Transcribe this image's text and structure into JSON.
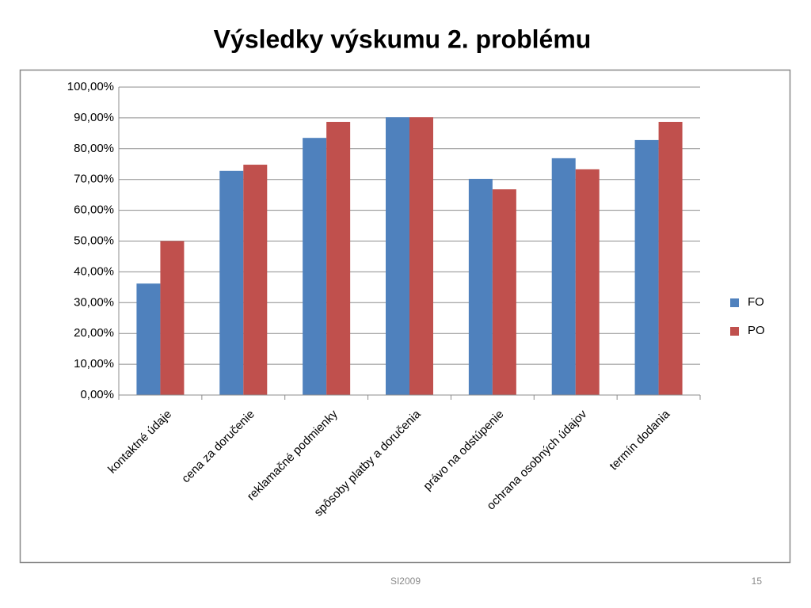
{
  "chart_data": {
    "type": "bar",
    "title": "Výsledky výskumu 2. problému",
    "categories": [
      "kontaktné údaje",
      "cena za doručenie",
      "reklamačné podmienky",
      "spôsoby platby a doručenia",
      "právo na odstúpenie",
      "ochrana osobných údajov",
      "termín dodania"
    ],
    "series": [
      {
        "name": "FO",
        "color": "#4f81bd",
        "values": [
          36.2,
          72.8,
          83.5,
          90.2,
          70.2,
          76.9,
          82.8
        ]
      },
      {
        "name": "PO",
        "color": "#c0504d",
        "values": [
          50,
          74.8,
          88.7,
          90.2,
          66.8,
          73.3,
          88.7
        ]
      }
    ],
    "ylim": [
      0,
      100
    ],
    "yticks": [
      {
        "value": 0,
        "label": "0,00%"
      },
      {
        "value": 10,
        "label": "10,00%"
      },
      {
        "value": 20,
        "label": "20,00%"
      },
      {
        "value": 30,
        "label": "30,00%"
      },
      {
        "value": 40,
        "label": "40,00%"
      },
      {
        "value": 50,
        "label": "50,00%"
      },
      {
        "value": 60,
        "label": "60,00%"
      },
      {
        "value": 70,
        "label": "70,00%"
      },
      {
        "value": 80,
        "label": "80,00%"
      },
      {
        "value": 90,
        "label": "90,00%"
      },
      {
        "value": 100,
        "label": "100,00%"
      }
    ],
    "grid": true,
    "legend": "right"
  },
  "footer": {
    "left": "SI2009",
    "page": "15"
  }
}
